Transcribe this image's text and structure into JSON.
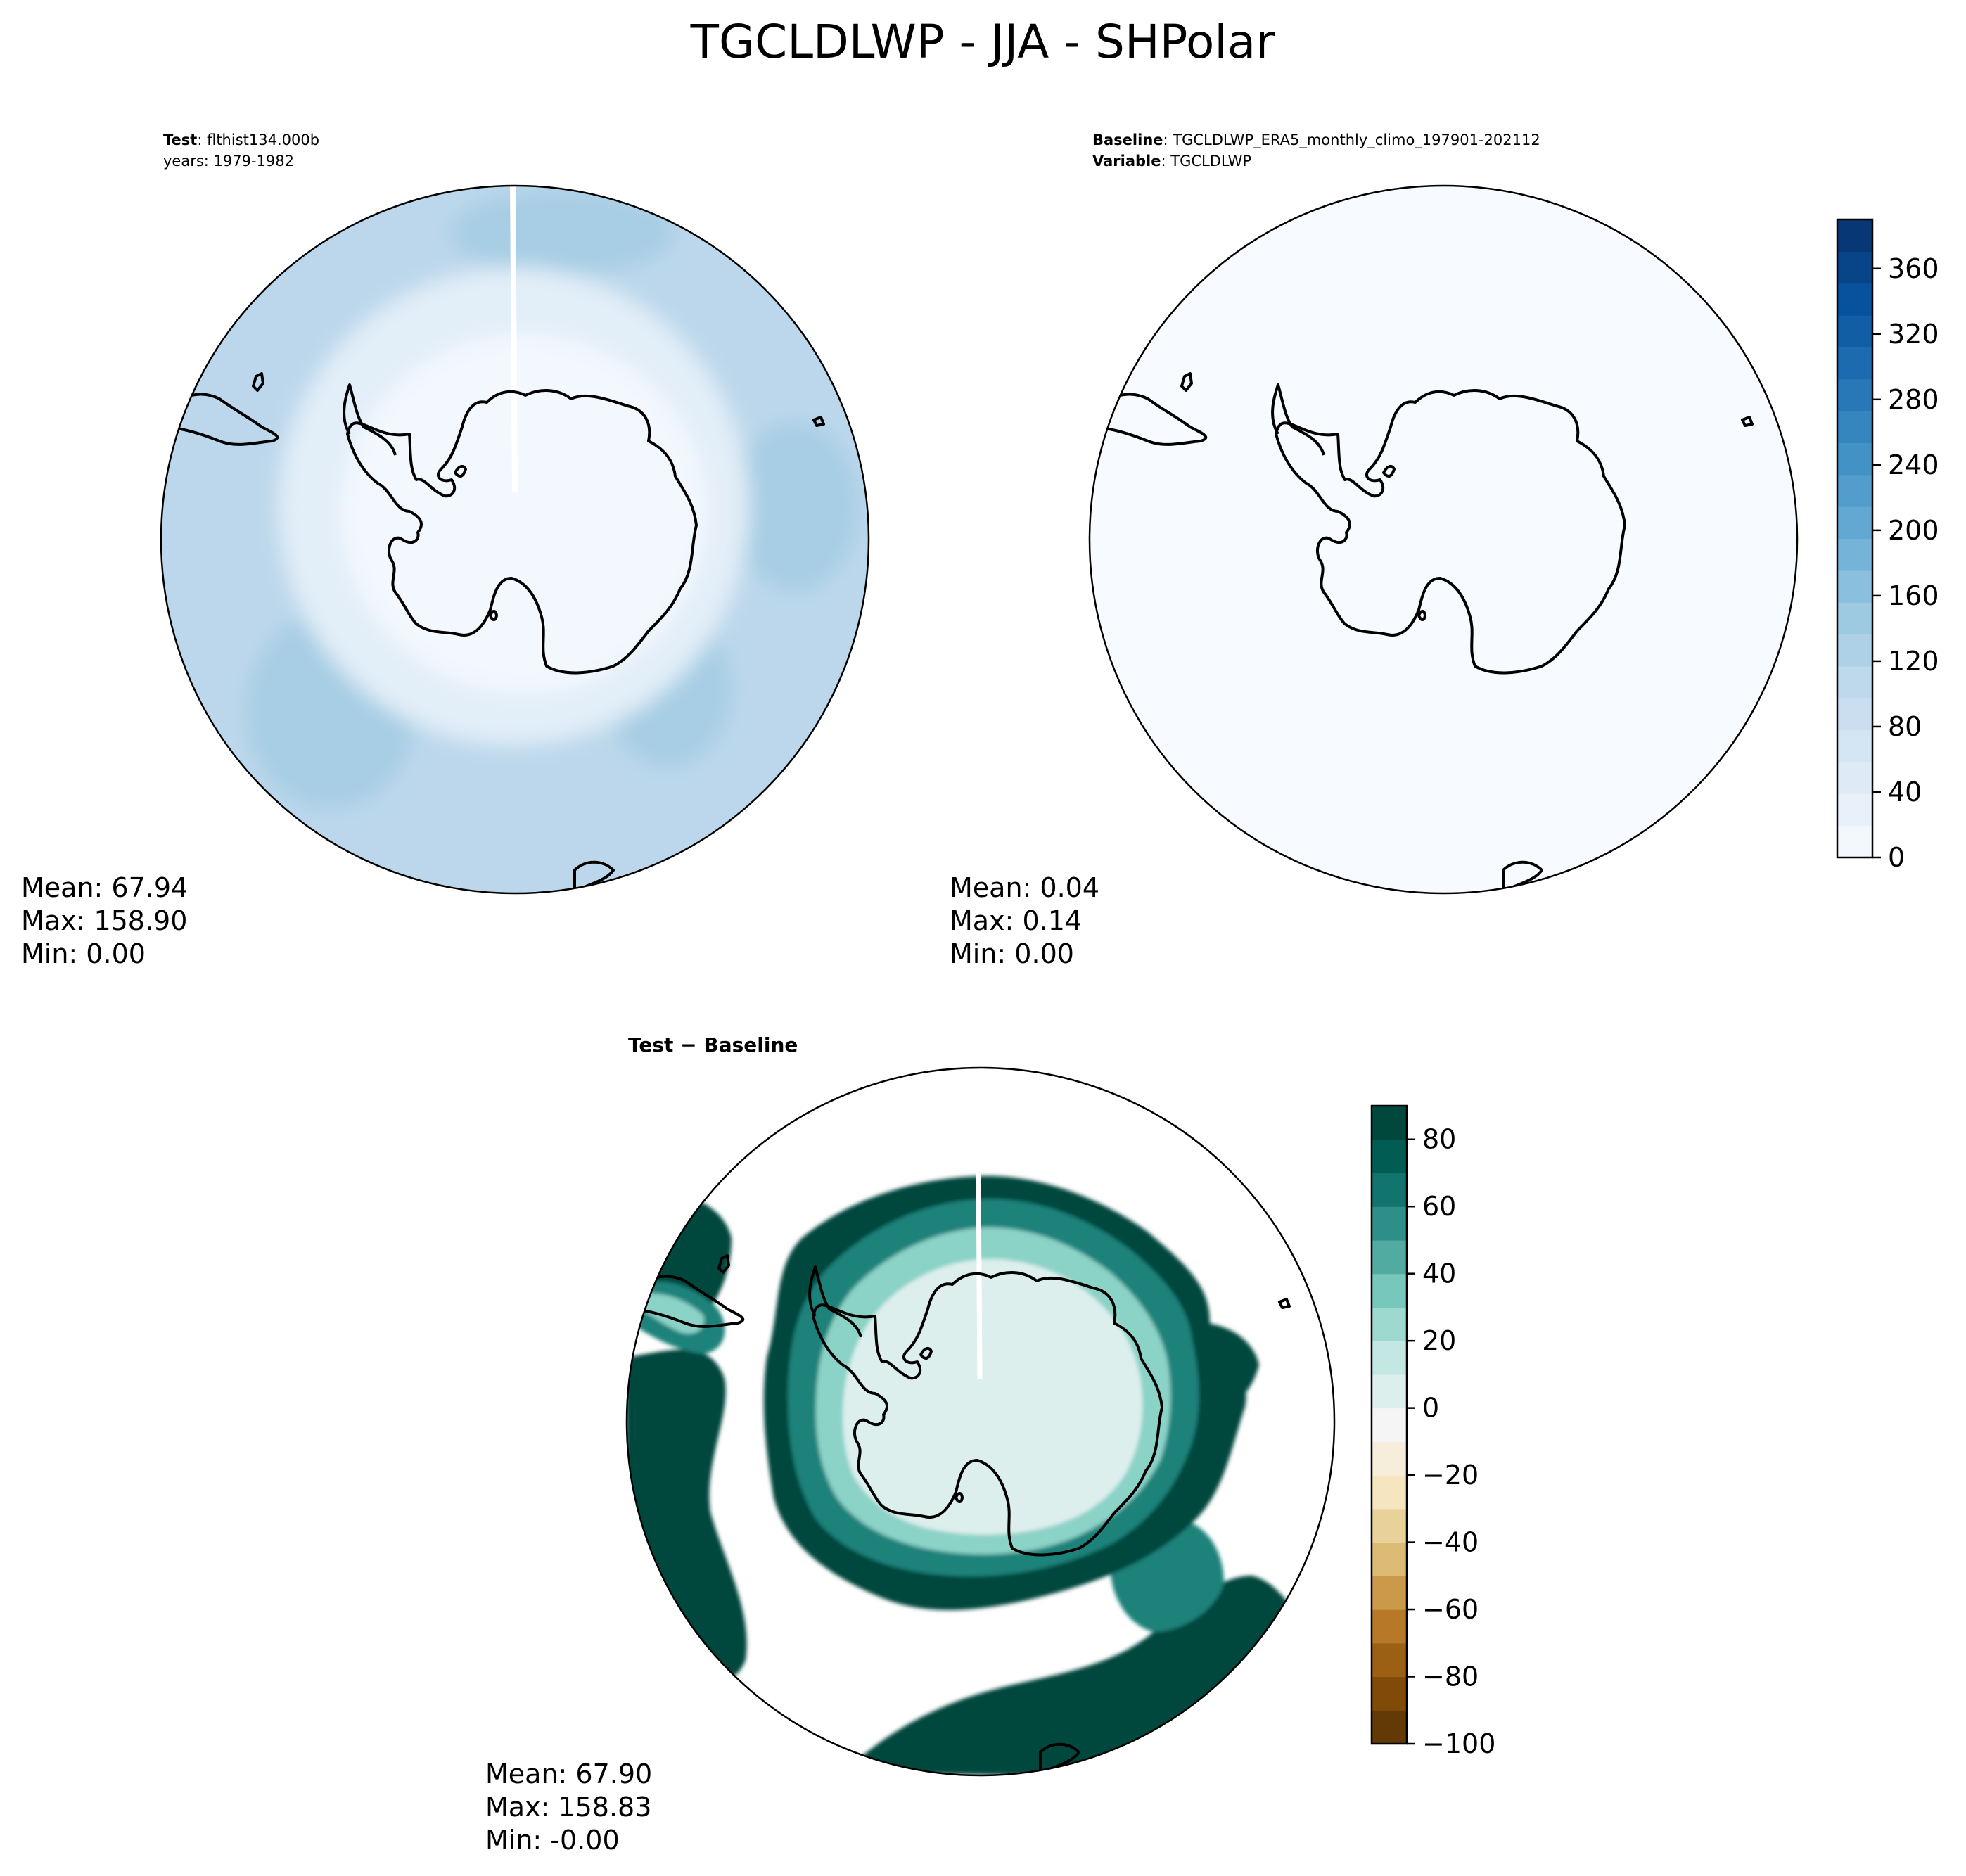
{
  "figure": {
    "title": "TGCLDLWP - JJA - SHPolar"
  },
  "chart_data": [
    {
      "type": "heatmap",
      "panel": "test",
      "projection": "south-polar-stereographic",
      "header": {
        "label": "Test",
        "value": "flthist134.000b",
        "line2": "years: 1979-1982"
      },
      "stats": {
        "mean": "Mean: 67.94",
        "max": "Max: 158.90",
        "min": "Min:  0.00"
      },
      "colormap": "Blues",
      "fields": [
        {
          "region": "antarctic-interior",
          "value": 8
        },
        {
          "region": "near-coast-ring",
          "value": 40
        },
        {
          "region": "southern-ocean",
          "value": 110
        },
        {
          "region": "outer-ocean-patches",
          "value": 135
        }
      ],
      "gap_line": "white seam along 0° longitude"
    },
    {
      "type": "heatmap",
      "panel": "baseline",
      "projection": "south-polar-stereographic",
      "header": {
        "label": "Baseline",
        "value": "TGCLDLWP_ERA5_monthly_climo_197901-202112",
        "label2": "Variable",
        "value2": "TGCLDLWP"
      },
      "stats": {
        "mean": "Mean:  0.04",
        "max": "Max:  0.14",
        "min": "Min:  0.00"
      },
      "colormap": "Blues",
      "fields": [
        {
          "region": "all",
          "value": 0.04
        }
      ],
      "colorbar": {
        "range": [
          0,
          390
        ],
        "ticks": [
          0,
          40,
          80,
          120,
          160,
          200,
          240,
          280,
          320,
          360
        ],
        "levels": 20
      }
    },
    {
      "type": "heatmap",
      "panel": "difference",
      "projection": "south-polar-stereographic",
      "header": {
        "label": "Test − Baseline"
      },
      "stats": {
        "mean": "Mean: 67.90",
        "max": "Max: 158.83",
        "min": "Min: -0.00"
      },
      "colormap": "BrBG",
      "fields": [
        {
          "region": "antarctic-interior",
          "value": 5
        },
        {
          "region": "coastal-ring",
          "value": 30
        },
        {
          "region": "shelf-ring",
          "value": 60
        },
        {
          "region": "sea-ice-edge",
          "value": 85
        },
        {
          "region": "open-ocean",
          "value": "above-range (blank)"
        }
      ],
      "colorbar": {
        "range": [
          -100,
          90
        ],
        "ticks": [
          -100,
          -80,
          -60,
          -40,
          -20,
          0,
          20,
          40,
          60,
          80
        ],
        "step": 10,
        "tick_labels": [
          "−100",
          "−80",
          "−60",
          "−40",
          "−20",
          "0",
          "20",
          "40",
          "60",
          "80"
        ]
      }
    }
  ],
  "colors": {
    "blues_low": "#f4f8fc",
    "blues_high": "#08306b",
    "diff_high": "#01463a",
    "diff_low": "#583005"
  }
}
